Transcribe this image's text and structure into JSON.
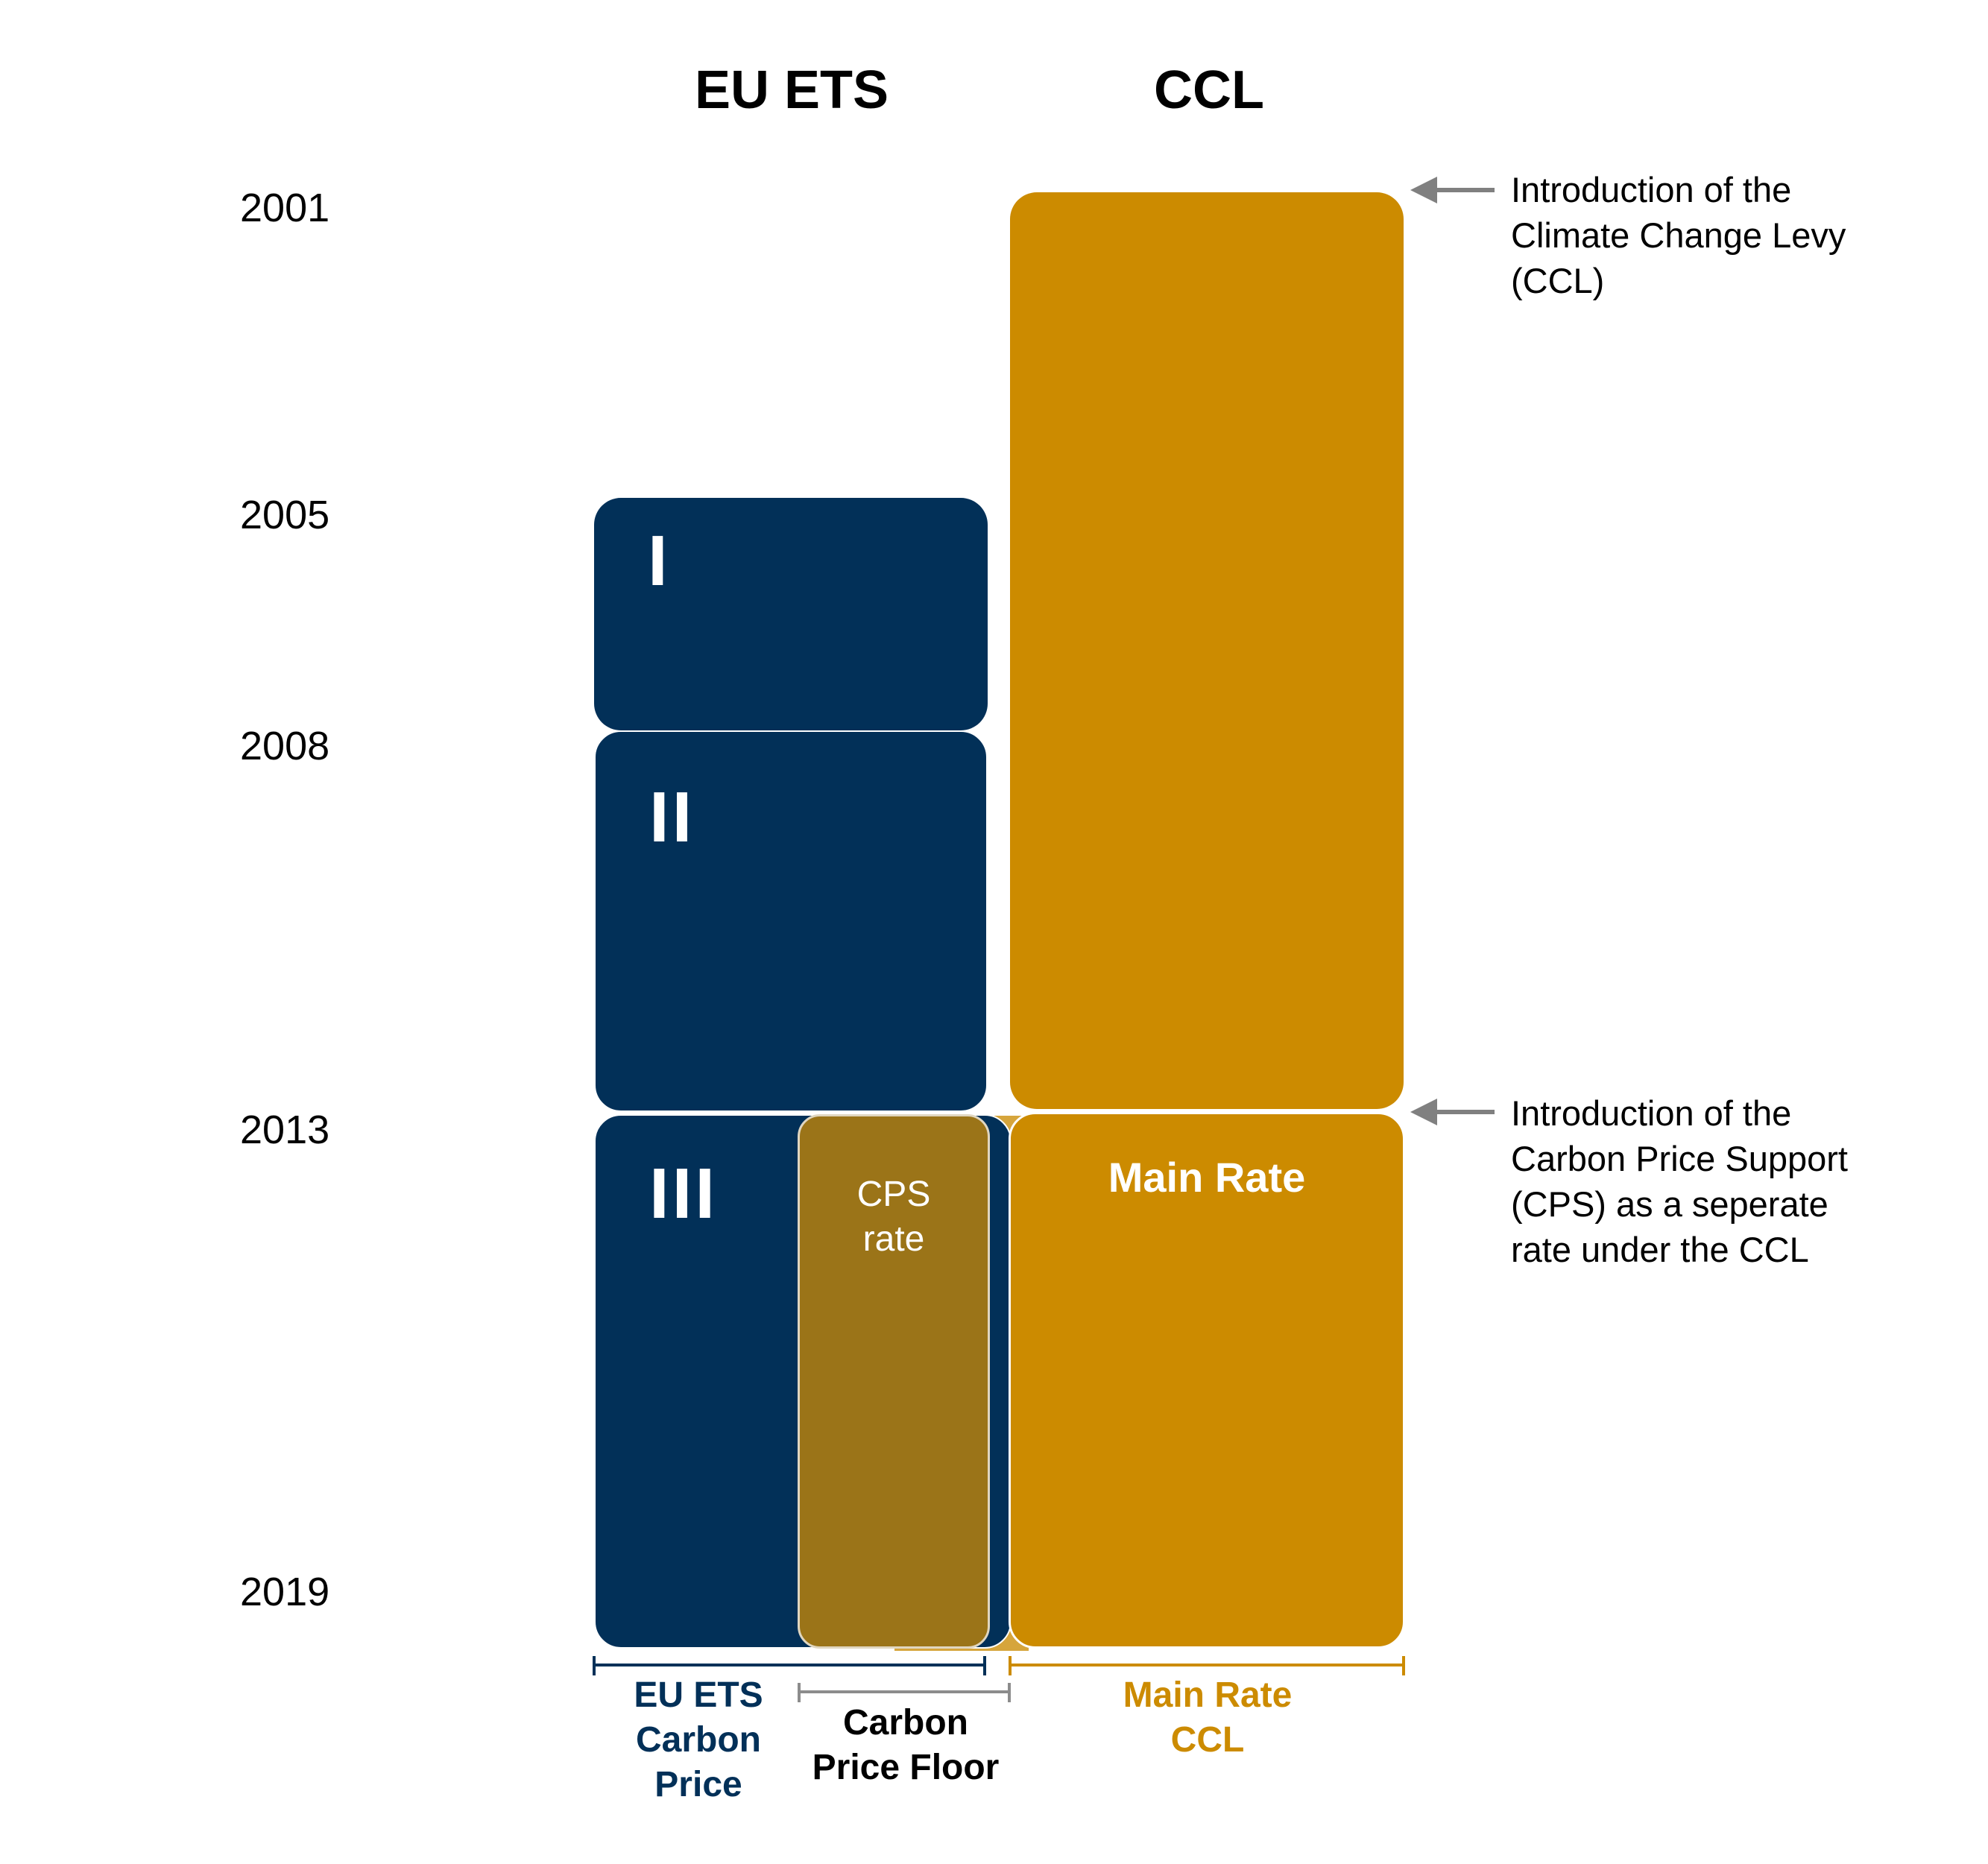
{
  "headers": {
    "eu_ets": "EU ETS",
    "ccl": "CCL"
  },
  "years": [
    "2001",
    "2005",
    "2008",
    "2013",
    "2019"
  ],
  "phases": {
    "phase1": "I",
    "phase2": "II",
    "phase3": "III"
  },
  "blocks": {
    "cps": "CPS\nrate",
    "main_rate": "Main Rate"
  },
  "notes": {
    "ccl_intro": "Introduction of the\nClimate Change Levy\n(CCL)",
    "cps_intro": "Introduction of the\nCarbon Price Support\n(CPS) as a seperate\nrate under the CCL"
  },
  "bottom_labels": {
    "eu_ets_price": "EU ETS\nCarbon\nPrice",
    "carbon_floor": "Carbon\nPrice Floor",
    "main_rate_ccl": "Main Rate\nCCL"
  },
  "colors": {
    "navy": "#023058",
    "gold": "#cc8b00",
    "cps": "#9b7418",
    "light_gold": "#d6a53c",
    "arrow": "#808080",
    "floor_bracket": "#8c8c8c"
  }
}
